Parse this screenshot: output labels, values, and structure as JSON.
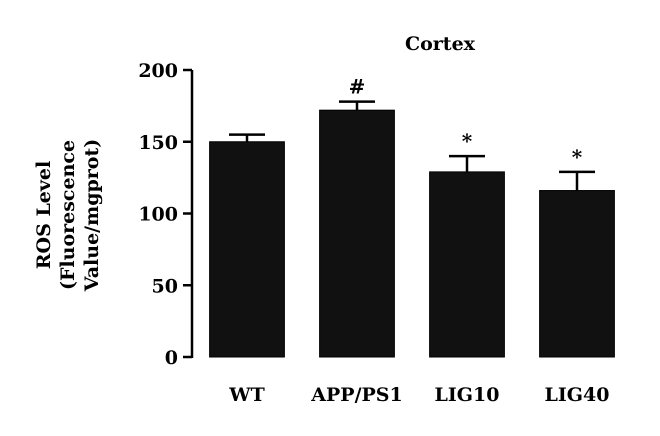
{
  "chart_data": {
    "type": "bar",
    "title": "Cortex",
    "ylabel_lines": [
      "ROS Level",
      "(Fluorescence",
      "Value/mgprot)"
    ],
    "xlabel": "",
    "categories": [
      "WT",
      "APP/PS1",
      "LIG10",
      "LIG40"
    ],
    "values": [
      150,
      172,
      129,
      116
    ],
    "errors": [
      5,
      6,
      11,
      13
    ],
    "annotations": [
      "",
      "#",
      "*",
      "*"
    ],
    "ylim": [
      0,
      200
    ],
    "yticks": [
      0,
      50,
      100,
      150,
      200
    ],
    "bar_color": "#111111",
    "grid": false,
    "legend": "none"
  }
}
